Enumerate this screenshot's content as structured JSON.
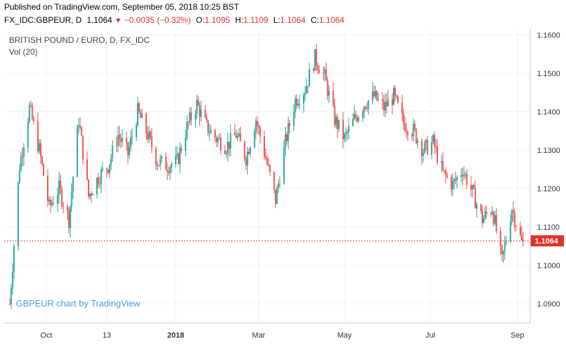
{
  "header": {
    "published": "Published on TradingView.com, September 05, 2018 10:25 BST",
    "symbol": "FX_IDC:GBPEUR, D",
    "last": "1.1064",
    "change": "−0.0035 (−0.32%)",
    "open_label": "O:",
    "open": "1.1095",
    "high_label": "H:",
    "high": "1.1109",
    "low_label": "L:",
    "low": "1.1064",
    "close_label": "C:",
    "close": "1.1064"
  },
  "chart_data": {
    "type": "line",
    "title": "BRITISH POUND / EURO, D, FX_IDC",
    "subtitle": "Vol (20)",
    "watermark": "GBPEUR chart by TradingView",
    "xlabel": "",
    "ylabel": "",
    "ylim": [
      1.085,
      1.1615
    ],
    "y_ticks": [
      "1.1600",
      "1.1500",
      "1.1400",
      "1.1300",
      "1.1200",
      "1.1100",
      "1.1000",
      "1.0900"
    ],
    "x_ticks": [
      "Oct",
      "13",
      "2018",
      "Mar",
      "May",
      "Jul",
      "Sep"
    ],
    "last_price_label": "1.1064",
    "last_price": 1.1064,
    "up_color": "#26a69a",
    "down_color": "#ef5350",
    "grid": true,
    "series": [
      {
        "x": [
          "2017-09-05",
          "2017-09-12",
          "2017-09-19",
          "2017-09-26",
          "2017-10-03",
          "2017-10-10",
          "2017-10-17",
          "2017-10-24",
          "2017-10-31",
          "2017-11-07",
          "2017-11-14",
          "2017-11-21",
          "2017-11-28",
          "2017-12-05",
          "2017-12-12",
          "2017-12-19",
          "2017-12-26",
          "2018-01-02",
          "2018-01-09",
          "2018-01-16",
          "2018-01-23",
          "2018-01-30",
          "2018-02-06",
          "2018-02-13",
          "2018-02-20",
          "2018-02-27",
          "2018-03-06",
          "2018-03-13",
          "2018-03-20",
          "2018-03-27",
          "2018-04-03",
          "2018-04-10",
          "2018-04-17",
          "2018-04-24",
          "2018-05-01",
          "2018-05-08",
          "2018-05-15",
          "2018-05-22",
          "2018-05-29",
          "2018-06-05",
          "2018-06-12",
          "2018-06-19",
          "2018-06-26",
          "2018-07-03",
          "2018-07-10",
          "2018-07-17",
          "2018-07-24",
          "2018-07-31",
          "2018-08-07",
          "2018-08-14",
          "2018-08-21",
          "2018-08-28",
          "2018-09-04"
        ],
        "values": [
          1.09,
          1.126,
          1.141,
          1.13,
          1.115,
          1.12,
          1.112,
          1.138,
          1.118,
          1.123,
          1.126,
          1.134,
          1.129,
          1.14,
          1.134,
          1.127,
          1.126,
          1.127,
          1.136,
          1.142,
          1.136,
          1.133,
          1.131,
          1.134,
          1.128,
          1.138,
          1.128,
          1.117,
          1.132,
          1.143,
          1.146,
          1.154,
          1.149,
          1.138,
          1.133,
          1.138,
          1.142,
          1.144,
          1.141,
          1.144,
          1.137,
          1.135,
          1.13,
          1.132,
          1.124,
          1.121,
          1.125,
          1.119,
          1.112,
          1.115,
          1.101,
          1.115,
          1.106
        ]
      }
    ]
  }
}
